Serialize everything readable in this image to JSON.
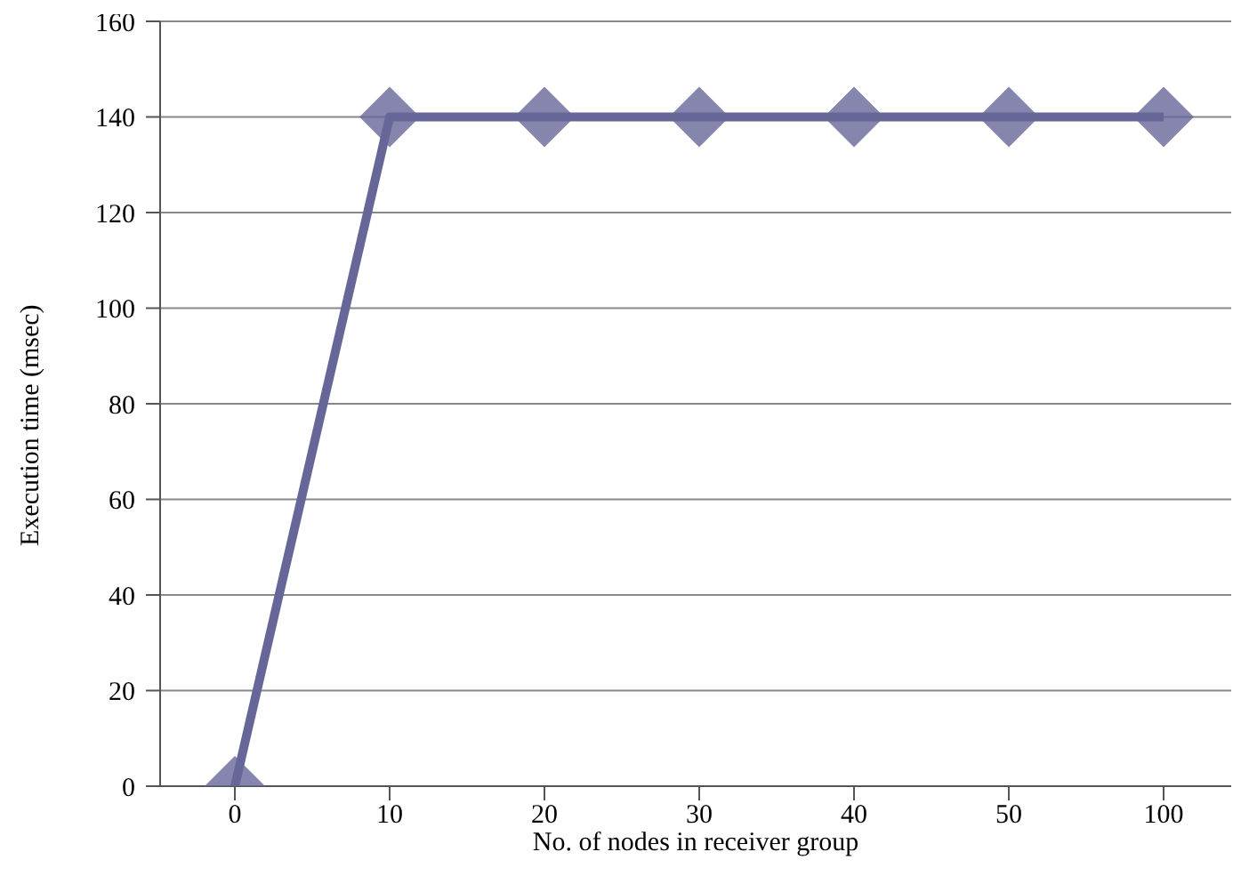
{
  "chart_data": {
    "type": "line",
    "xlabel": "No. of nodes in receiver group",
    "ylabel": "Execution  time (msec)",
    "categories": [
      "0",
      "10",
      "20",
      "30",
      "40",
      "50",
      "100"
    ],
    "series": [
      {
        "color": "#666699",
        "values": [
          0,
          140,
          140,
          140,
          140,
          140,
          140
        ]
      }
    ],
    "ylim": [
      0,
      160
    ],
    "yticks": [
      0,
      20,
      40,
      60,
      80,
      100,
      120,
      140,
      160
    ],
    "grid": "y",
    "legend": false,
    "marker": "diamond",
    "line_style": "solid"
  }
}
